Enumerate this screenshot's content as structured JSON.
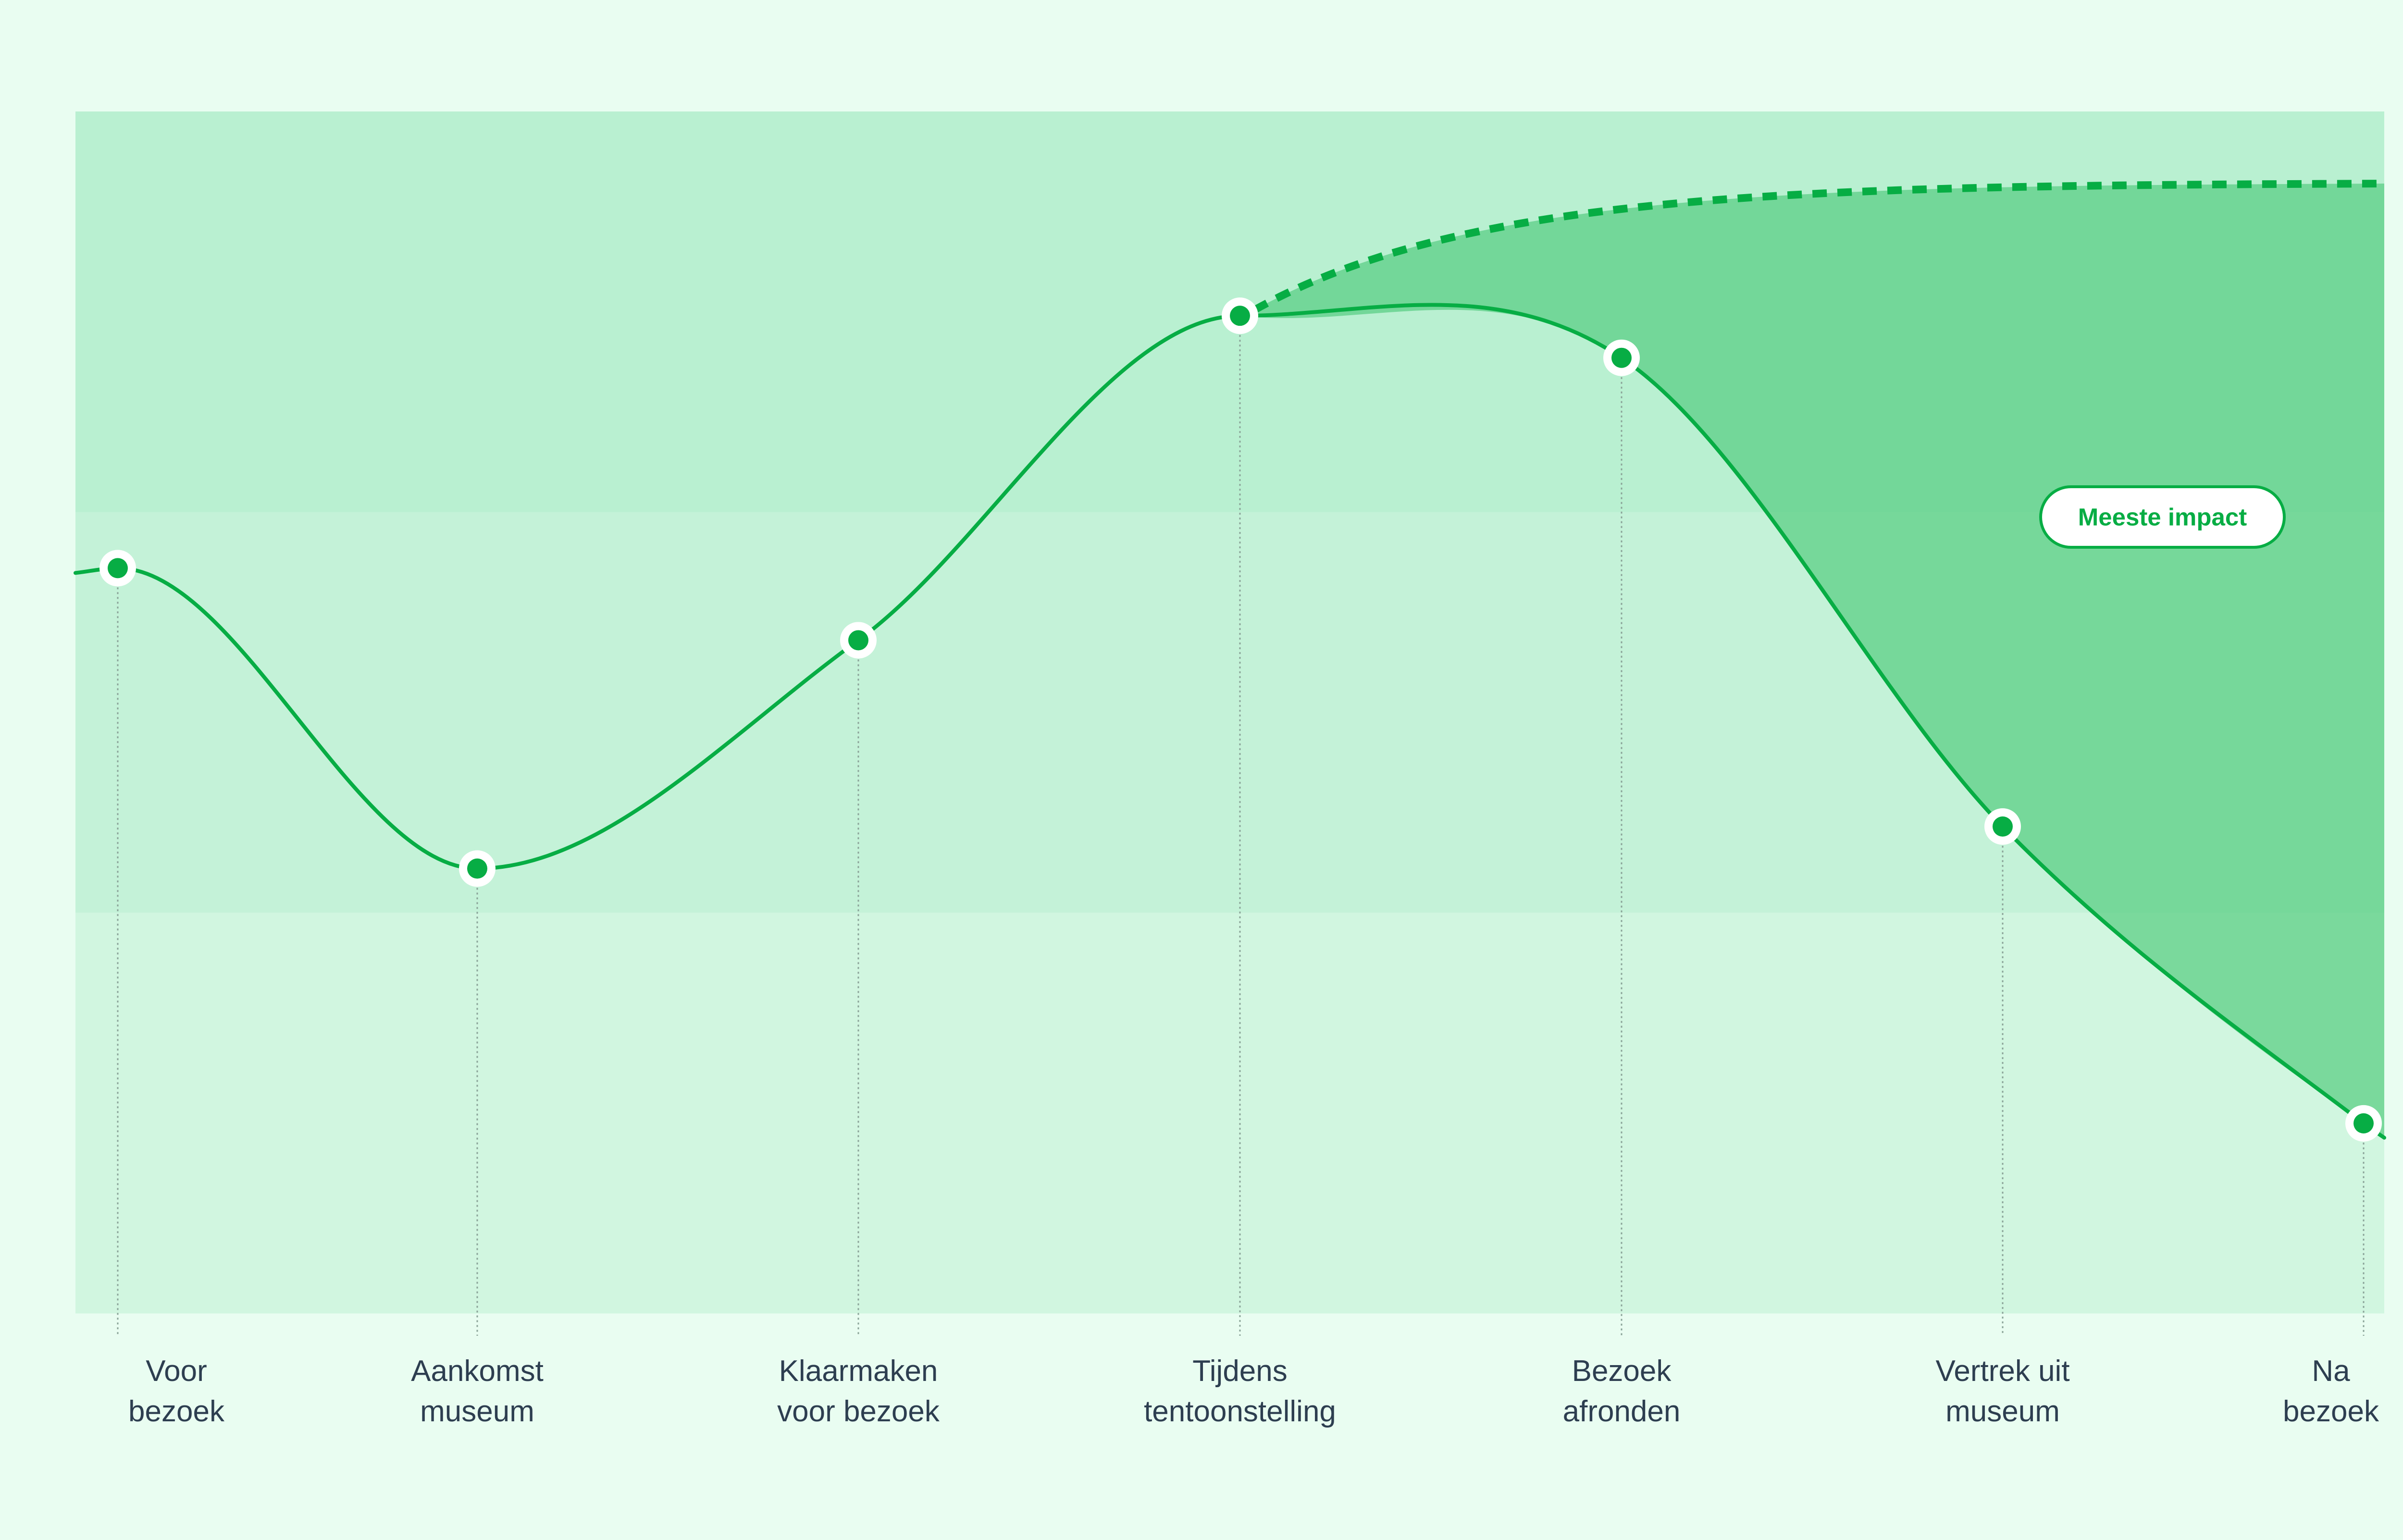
{
  "chart_data": {
    "type": "line",
    "title": "",
    "xlabel": "",
    "ylabel": "",
    "categories": [
      [
        "Voor",
        "bezoek"
      ],
      [
        "Aankomst",
        "museum"
      ],
      [
        "Klaarmaken",
        "voor bezoek"
      ],
      [
        "Tijdens",
        "tentoonstelling"
      ],
      [
        "Bezoek",
        "afronden"
      ],
      [
        "Vertrek uit",
        "museum"
      ],
      [
        "Na",
        "bezoek"
      ]
    ],
    "series": [
      {
        "values": [
          62,
          37,
          56,
          83,
          79.5,
          40.5,
          15.8
        ]
      }
    ],
    "potential": {
      "start": 3,
      "values": [
        83,
        94
      ]
    },
    "ylim": [
      0,
      100
    ],
    "bands": 3,
    "grid": false,
    "annotation": {
      "text": "Meeste impact"
    },
    "colors": {
      "background": "#e9fdf1",
      "band_top": "#b9f0d1",
      "band_middle": "#c4f2d8",
      "band_bottom": "#d1f6e0",
      "line": "#07ad44",
      "impact_fill": "#5ccf85",
      "marker_fill": "#07ad44",
      "marker_ring": "#ffffff",
      "label_text": "#2d3e50",
      "guide_line": "#8aa398"
    }
  }
}
